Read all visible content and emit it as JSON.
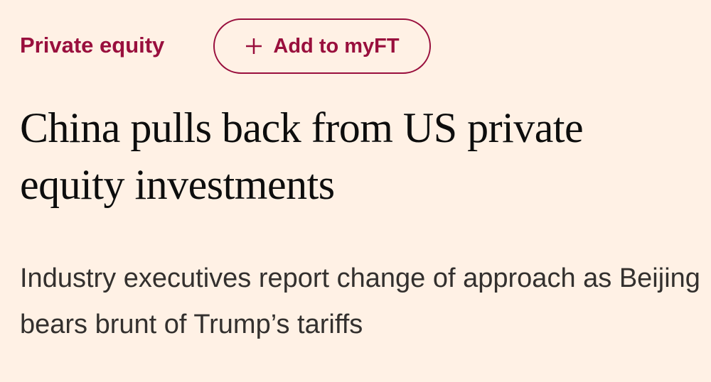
{
  "topic": "Private equity",
  "button": {
    "label": "Add to myFT"
  },
  "headline": "China pulls back from US private equity investments",
  "standfirst": "Industry executives report change of approach as Beijing bears brunt of Trump’s tariffs"
}
